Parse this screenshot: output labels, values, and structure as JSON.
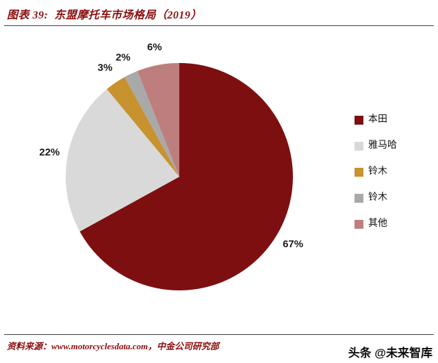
{
  "header": {
    "title": "图表 39:  东盟摩托车市场格局（2019）"
  },
  "footer": {
    "source": "资料来源：www.motorcyclesdata.com，中金公司研究部",
    "watermark": "头条 @未来智库"
  },
  "colors": {
    "accent_red": "#8B0E0E",
    "rule": "#3d3d3d",
    "percent_label_text": "#1a1a1a"
  },
  "chart_data": {
    "type": "pie",
    "title": "东盟摩托车市场格局（2019）",
    "categories": [
      "本田",
      "雅马哈",
      "铃木",
      "铃木",
      "其他"
    ],
    "values": [
      67,
      22,
      3,
      2,
      6
    ],
    "labels": [
      "67%",
      "22%",
      "3%",
      "2%",
      "6%"
    ],
    "colors": [
      "#7E0F10",
      "#D9D9D9",
      "#C8922F",
      "#A9A9A9",
      "#BE7E7E"
    ],
    "start_angle_deg": 0,
    "direction": "clockwise",
    "legend_position": "right",
    "grid": false
  }
}
